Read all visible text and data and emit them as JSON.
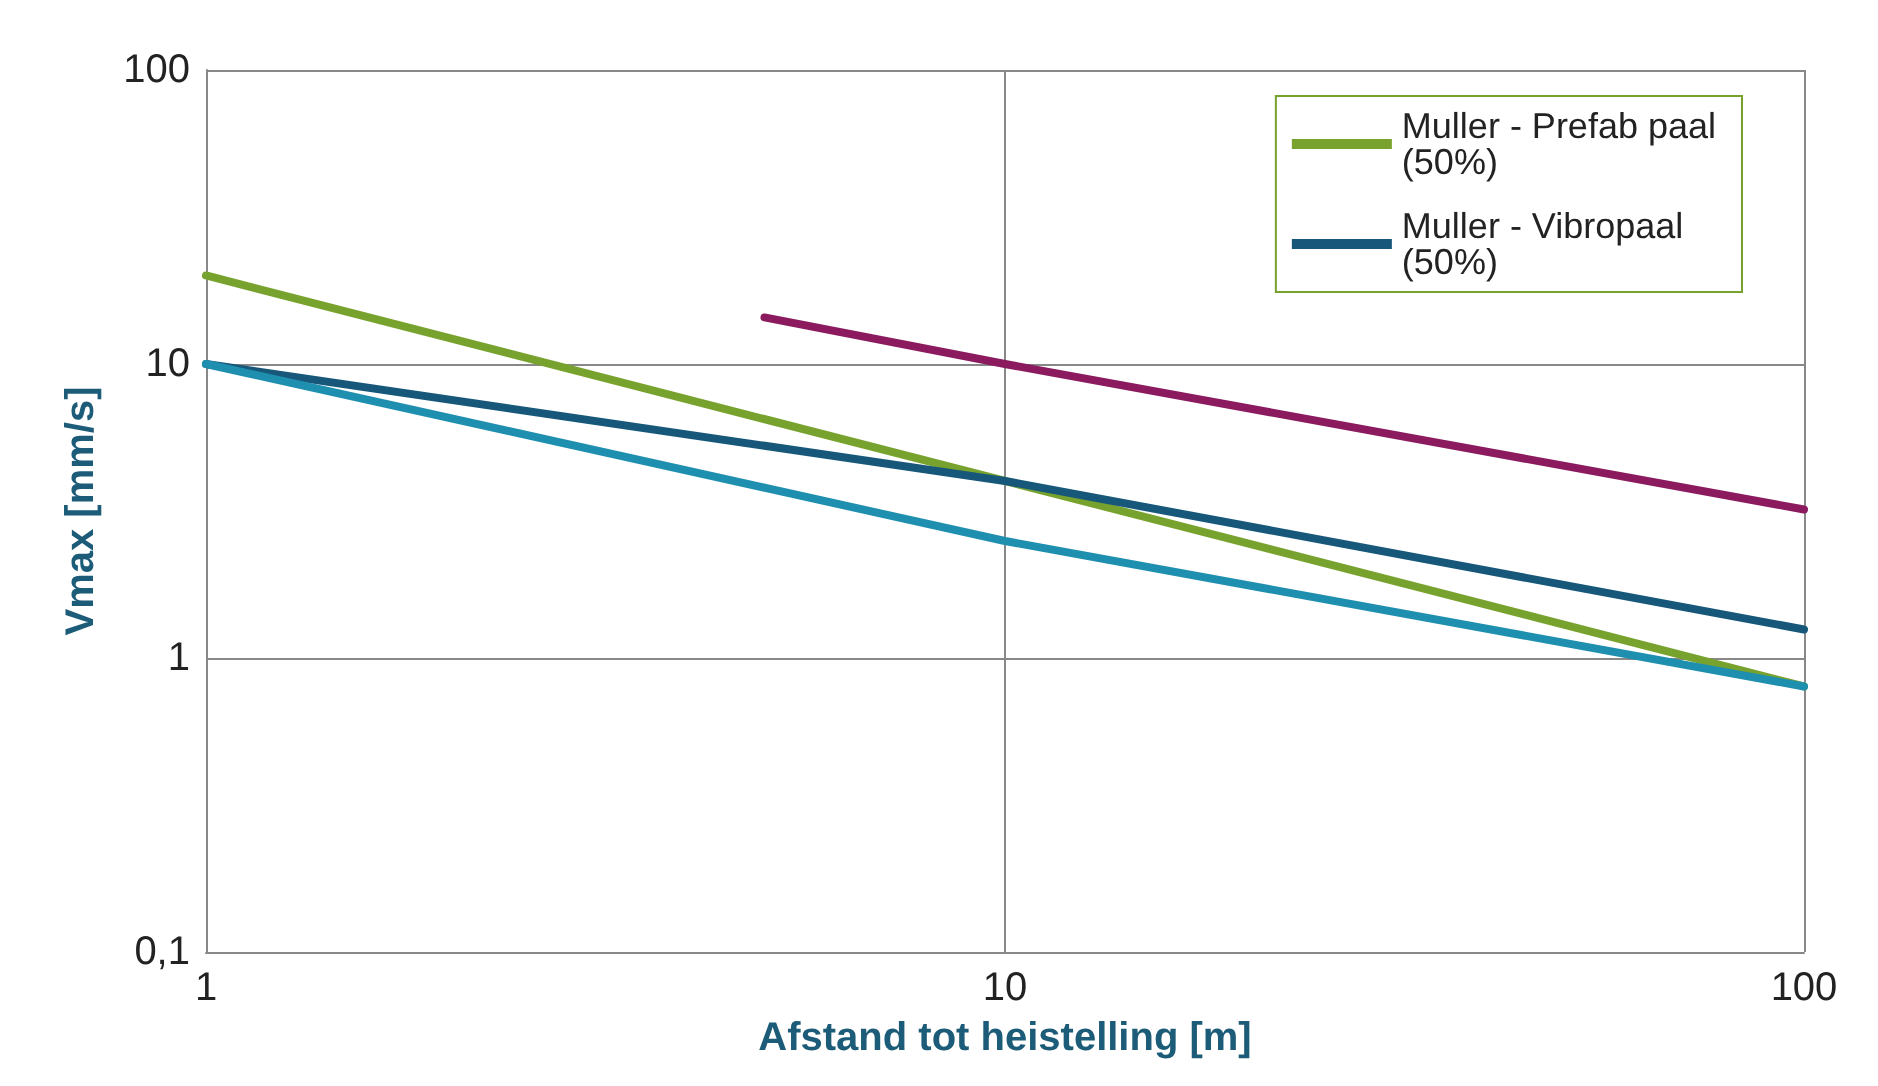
{
  "chart_data": {
    "type": "line",
    "xlabel": "Afstand tot heistelling [m]",
    "ylabel": "Vmax [mm/s]",
    "log": "xy",
    "xlim": [
      1,
      100
    ],
    "ylim": [
      0.1,
      100
    ],
    "xticks": [
      1,
      10,
      100
    ],
    "yticks": [
      {
        "value": 0.1,
        "label": "0,1"
      },
      1,
      10,
      100
    ],
    "grid": true,
    "legend": "top right",
    "marker": "none",
    "line_style": "solid",
    "series": [
      {
        "name": "Muller - Prefab paal (50%)",
        "color": "#77a22d",
        "x": [
          1,
          10,
          100
        ],
        "values": [
          20,
          4,
          0.8
        ]
      },
      {
        "name": "Muller - Vibropaal (50%)",
        "color": "#17587a",
        "x": [
          1,
          10,
          100
        ],
        "values": [
          10,
          4,
          1.25
        ]
      },
      {
        "color": "#8b1a5e",
        "x": [
          5,
          10,
          100
        ],
        "values": [
          14.4,
          10,
          3.2
        ]
      },
      {
        "color": "#1f8fb0",
        "x": [
          1,
          10,
          100
        ],
        "values": [
          10,
          2.5,
          0.8
        ]
      }
    ]
  }
}
